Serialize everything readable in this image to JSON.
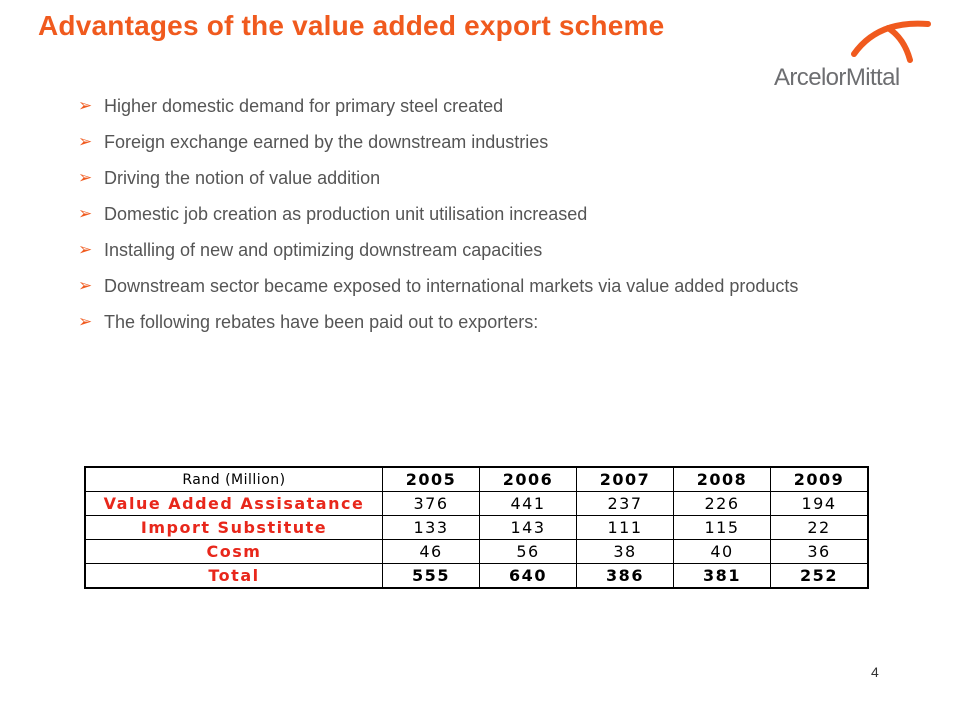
{
  "slide": {
    "title": "Advantages of the value added export scheme",
    "page_number": "4",
    "accent_color": "#f05a1e",
    "table_label_color": "#e8271b"
  },
  "logo": {
    "text": "ArcelorMittal",
    "icon": "arcelormittal-arc-logo"
  },
  "bullets": [
    {
      "icon": "arrow-bullet-icon",
      "marker": "➢",
      "text": "Higher domestic demand for primary steel created"
    },
    {
      "icon": "arrow-bullet-icon",
      "marker": "➢",
      "text": "Foreign exchange earned by the downstream industries"
    },
    {
      "icon": "arrow-bullet-icon",
      "marker": "➢",
      "text": "Driving the notion of value addition"
    },
    {
      "icon": "arrow-bullet-icon",
      "marker": "➢",
      "text": "Domestic job creation as production unit utilisation increased"
    },
    {
      "icon": "arrow-bullet-icon",
      "marker": "➢",
      "text": "Installing of new and optimizing downstream capacities"
    },
    {
      "icon": "arrow-bullet-icon",
      "marker": "➢",
      "text": "Downstream sector became exposed to international markets via value added products"
    },
    {
      "icon": "arrow-bullet-icon",
      "marker": "➢",
      "text": "The following rebates have been paid out to exporters:"
    }
  ],
  "table": {
    "corner_label": "Rand (Million)",
    "years": [
      "2005",
      "2006",
      "2007",
      "2008",
      "2009"
    ],
    "rows": [
      {
        "label": "Value Added Assisatance",
        "values": [
          "376",
          "441",
          "237",
          "226",
          "194"
        ]
      },
      {
        "label": "Import Substitute",
        "values": [
          "133",
          "143",
          "111",
          "115",
          "22"
        ]
      },
      {
        "label": "Cosm",
        "values": [
          "46",
          "56",
          "38",
          "40",
          "36"
        ]
      },
      {
        "label": "Total",
        "values": [
          "555",
          "640",
          "386",
          "381",
          "252"
        ]
      }
    ]
  }
}
